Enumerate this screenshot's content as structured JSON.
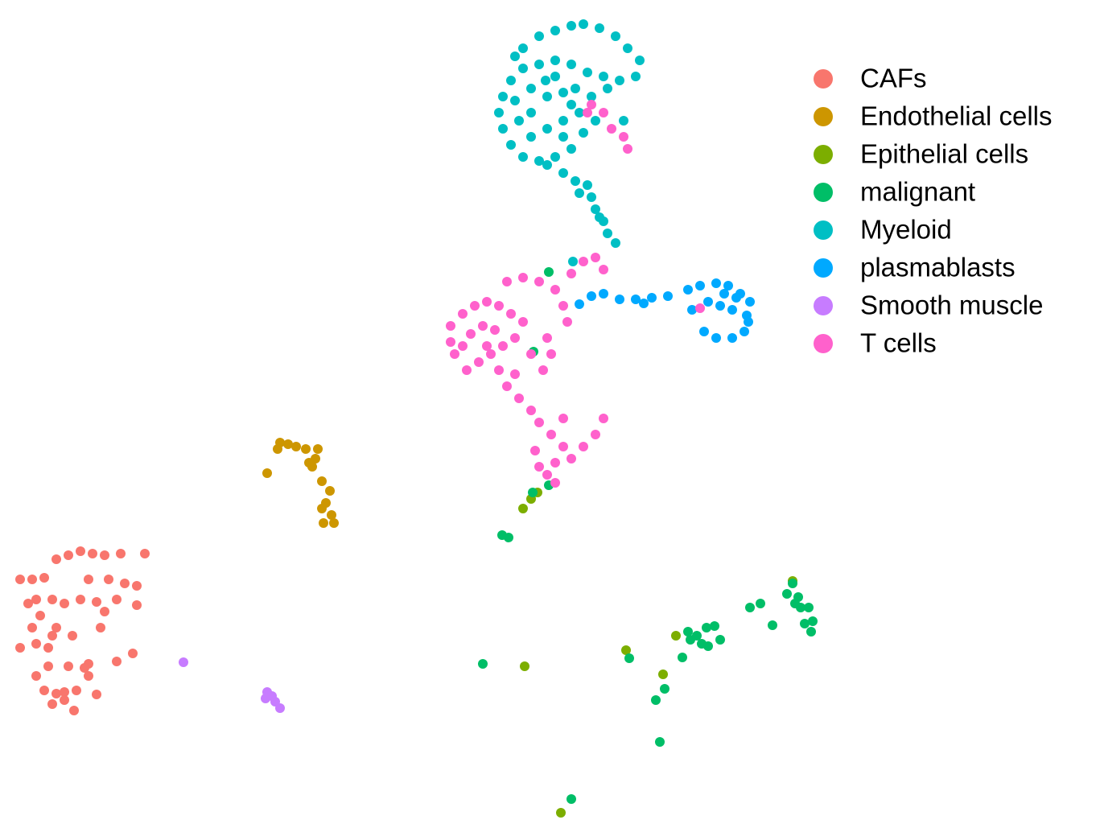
{
  "chart_data": {
    "type": "scatter",
    "legend": "right",
    "xlim": [
      0,
      105
    ],
    "ylim": [
      0,
      100
    ],
    "series": [
      {
        "name": "CAFs",
        "color": "#F8766D",
        "x": [
          2.5,
          4.0,
          5.5,
          7.0,
          8.5,
          10.0,
          11.5,
          13.0,
          15.0,
          18.0,
          3.5,
          4.5,
          6.5,
          8.0,
          10.0,
          12.0,
          14.5,
          17.0,
          4.0,
          5.0,
          7.0,
          9.0,
          11.0,
          13.5,
          15.5,
          17.0,
          2.5,
          4.5,
          6.0,
          6.5,
          11.0,
          12.5,
          14.5,
          16.5,
          4.5,
          6.0,
          8.5,
          10.5,
          5.5,
          7.0,
          8.0,
          9.5,
          12.0,
          6.5,
          8.0,
          9.2,
          11.0,
          13.0
        ],
        "y": [
          30.4,
          30.4,
          30.6,
          32.9,
          33.4,
          33.9,
          33.6,
          33.4,
          33.6,
          33.6,
          27.4,
          27.9,
          27.9,
          27.4,
          27.9,
          27.6,
          27.9,
          27.2,
          24.4,
          25.9,
          24.4,
          23.4,
          30.4,
          30.4,
          29.9,
          29.6,
          21.9,
          22.4,
          21.9,
          23.4,
          19.9,
          24.4,
          20.2,
          21.2,
          18.4,
          19.6,
          19.6,
          19.4,
          16.6,
          16.2,
          16.4,
          16.6,
          16.1,
          14.9,
          15.4,
          14.1,
          18.4,
          26.4
        ]
      },
      {
        "name": "Endothelial cells",
        "color": "#CD9600",
        "x": [
          34.8,
          35.8,
          36.8,
          38.0,
          39.5,
          39.2,
          38.8,
          38.4,
          33.2,
          40.0,
          41.0,
          40.5,
          40.0,
          41.2,
          40.2,
          41.5,
          34.5
        ],
        "y": [
          47.4,
          47.2,
          46.9,
          46.6,
          46.6,
          45.4,
          44.4,
          44.9,
          43.6,
          42.6,
          41.4,
          39.9,
          39.2,
          38.4,
          37.4,
          37.4,
          46.6
        ]
      },
      {
        "name": "Epithelial cells",
        "color": "#7CAE00",
        "x": [
          65.0,
          66.0,
          66.8,
          77.8,
          84.0,
          65.2,
          82.4,
          69.7,
          98.5
        ],
        "y": [
          39.2,
          40.4,
          41.2,
          21.6,
          23.4,
          19.6,
          18.6,
          1.4,
          30.2
        ]
      },
      {
        "name": "malignant",
        "color": "#00BE67",
        "x": [
          66.2,
          68.2,
          68.2,
          66.3,
          62.4,
          63.2,
          60.0,
          78.2,
          71.0,
          82.0,
          81.5,
          82.6,
          84.8,
          85.8,
          86.6,
          87.8,
          88.8,
          87.2,
          88.0,
          89.5,
          93.2,
          94.5,
          96.0,
          97.8,
          98.5,
          99.2,
          99.5,
          100.5,
          100.0,
          101.0,
          100.8,
          98.8,
          85.5
        ],
        "y": [
          41.2,
          42.1,
          68.6,
          58.7,
          35.9,
          35.6,
          19.9,
          20.6,
          3.1,
          10.2,
          15.4,
          16.8,
          20.7,
          22.9,
          23.4,
          24.4,
          24.6,
          22.4,
          22.1,
          22.9,
          26.9,
          27.4,
          24.7,
          28.6,
          29.9,
          28.2,
          26.9,
          26.9,
          24.9,
          25.2,
          23.9,
          27.4,
          23.9
        ]
      },
      {
        "name": "Myeloid",
        "color": "#00BFC4",
        "x": [
          65.0,
          67.0,
          69.0,
          71.0,
          72.5,
          74.5,
          76.5,
          78.0,
          79.5,
          79.0,
          77.0,
          75.0,
          73.0,
          71.0,
          69.0,
          67.0,
          65.0,
          63.5,
          62.5,
          62.0,
          62.5,
          63.5,
          65.0,
          67.0,
          69.0,
          71.0,
          72.5,
          74.0,
          72.0,
          70.0,
          68.0,
          66.0,
          64.5,
          64.0,
          66.0,
          68.0,
          70.0,
          71.5,
          73.5,
          75.5,
          69.0,
          66.0,
          70.0,
          68.0,
          70.0,
          71.5,
          72.0,
          73.5,
          74.0,
          75.0,
          75.5,
          76.5,
          74.5,
          73.0,
          77.5,
          71.2,
          67.8,
          71.0,
          64.0
        ],
        "y": [
          96.4,
          97.9,
          98.6,
          99.2,
          99.4,
          98.9,
          97.9,
          96.4,
          94.9,
          92.9,
          92.4,
          92.9,
          93.4,
          94.4,
          94.9,
          94.4,
          93.9,
          92.4,
          90.4,
          88.4,
          86.4,
          84.4,
          82.9,
          82.4,
          82.9,
          83.9,
          85.9,
          87.4,
          88.4,
          87.4,
          86.4,
          85.4,
          87.4,
          89.9,
          91.4,
          90.4,
          90.9,
          91.4,
          90.4,
          91.4,
          92.9,
          88.4,
          85.4,
          81.9,
          80.9,
          79.9,
          78.4,
          77.9,
          76.4,
          74.9,
          73.4,
          72.2,
          75.4,
          79.4,
          87.4,
          69.9,
          92.4,
          89.4,
          95.4
        ]
      },
      {
        "name": "plasmablasts",
        "color": "#00A9FF",
        "x": [
          72.0,
          73.5,
          75.0,
          77.0,
          79.0,
          81.0,
          83.0,
          85.5,
          87.0,
          89.0,
          90.5,
          92.0,
          93.2,
          92.8,
          91.0,
          89.5,
          88.0,
          86.0,
          87.5,
          89.0,
          91.0,
          92.5,
          93.0,
          91.5,
          90.0,
          80.0
        ],
        "y": [
          64.6,
          65.6,
          65.9,
          65.2,
          65.2,
          65.4,
          65.6,
          66.4,
          66.9,
          67.2,
          66.9,
          65.9,
          64.9,
          63.2,
          63.9,
          64.4,
          64.9,
          63.9,
          61.2,
          60.4,
          60.4,
          61.2,
          62.4,
          65.4,
          65.9,
          64.7
        ]
      },
      {
        "name": "Smooth muscle",
        "color": "#C77CFF",
        "x": [
          22.8,
          33.2,
          33.8,
          34.2,
          34.8,
          33.0
        ],
        "y": [
          20.1,
          16.4,
          15.9,
          15.2,
          14.4,
          15.6
        ]
      },
      {
        "name": "T cells",
        "color": "#FF61CC",
        "x": [
          56.0,
          57.5,
          59.0,
          60.5,
          62.0,
          63.5,
          65.0,
          64.0,
          62.5,
          61.0,
          59.5,
          58.0,
          56.5,
          56.0,
          58.5,
          60.0,
          61.5,
          63.0,
          65.0,
          67.0,
          69.0,
          71.0,
          72.5,
          74.0,
          75.0,
          70.0,
          68.0,
          68.5,
          67.5,
          64.0,
          63.0,
          64.5,
          66.0,
          67.0,
          68.5,
          70.0,
          69.0,
          68.0,
          67.0,
          69.0,
          71.0,
          72.5,
          74.0,
          75.0,
          70.0,
          73.5,
          75.0,
          76.0,
          77.5,
          78.0,
          73.0,
          70.5,
          62.0,
          57.5,
          60.5,
          66.0,
          66.5,
          87.0
        ],
        "y": [
          61.9,
          63.4,
          64.4,
          64.9,
          64.4,
          63.4,
          62.4,
          60.4,
          59.4,
          58.4,
          57.4,
          56.4,
          58.4,
          59.9,
          60.9,
          61.9,
          61.4,
          67.4,
          67.9,
          67.4,
          66.4,
          68.4,
          69.9,
          70.4,
          68.9,
          64.4,
          60.4,
          58.4,
          56.4,
          55.9,
          54.4,
          52.9,
          51.4,
          49.9,
          48.4,
          46.9,
          44.9,
          43.4,
          44.4,
          42.4,
          45.4,
          46.9,
          48.4,
          50.4,
          50.4,
          89.4,
          88.4,
          86.4,
          85.4,
          83.9,
          88.4,
          62.4,
          56.4,
          59.4,
          59.4,
          58.4,
          46.4,
          64.1
        ]
      }
    ]
  }
}
